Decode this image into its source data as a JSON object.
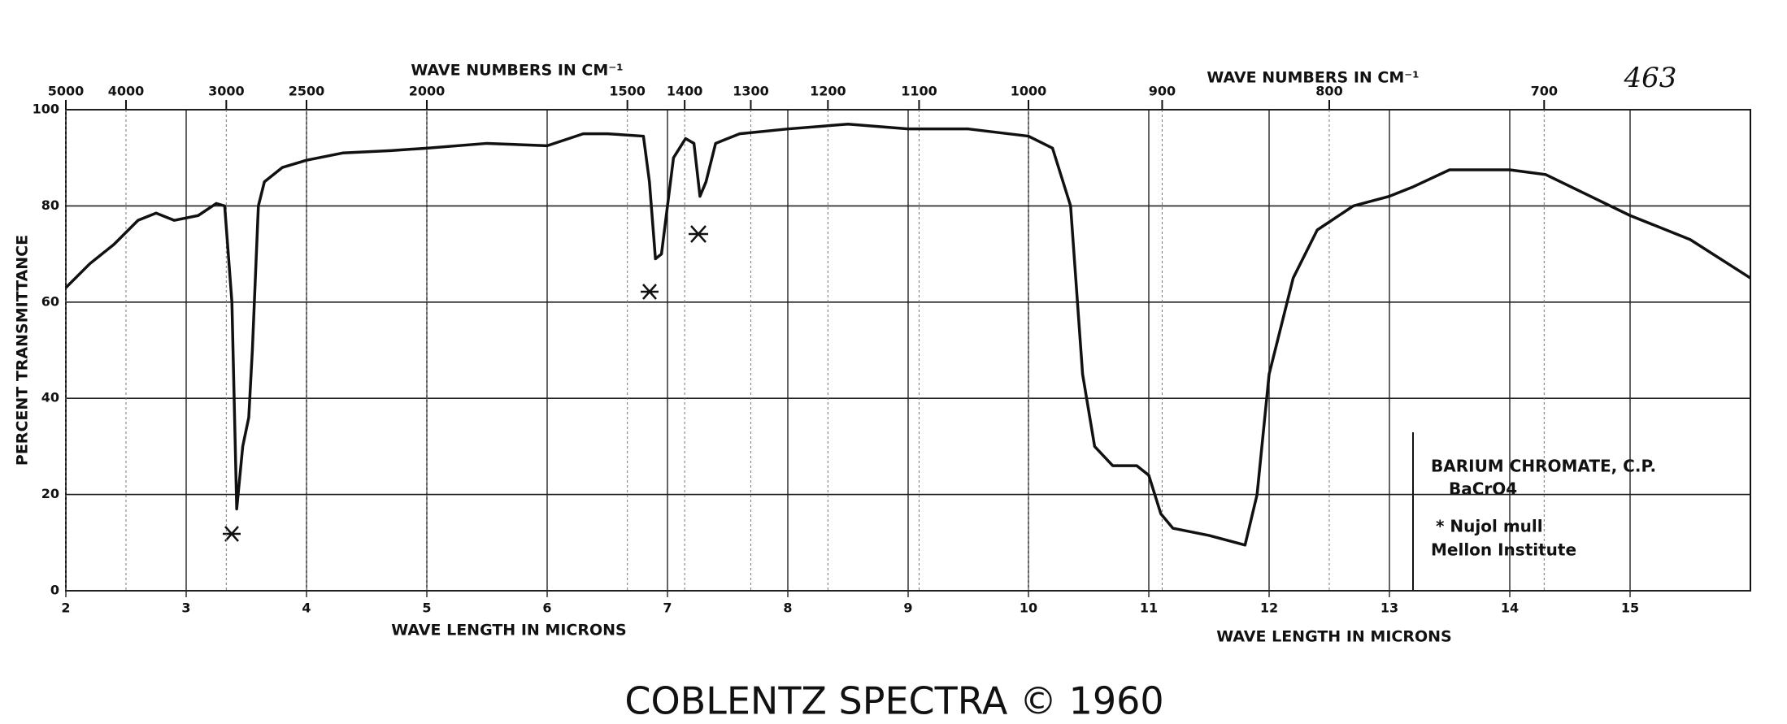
{
  "chart_data": {
    "type": "line",
    "top_label": "463",
    "x_label": "WAVE LENGTH IN MICRONS",
    "x2_label": "WAVE NUMBERS IN CM⁻¹",
    "y_label": "PERCENT TRANSMITTANCE",
    "footer": "COBLENTZ SPECTRA © 1960",
    "annotation": [
      "BARIUM CHROMATE, C.P.",
      "BaCrO4",
      "* Nujol mull",
      "Mellon Institute"
    ],
    "xlim": [
      2,
      16
    ],
    "xticks": [
      2,
      3,
      4,
      5,
      6,
      7,
      8,
      9,
      10,
      11,
      12,
      13,
      14,
      15
    ],
    "x2ticks": [
      5000,
      4000,
      3000,
      2500,
      2000,
      1500,
      1400,
      1300,
      1200,
      1100,
      1000,
      900,
      800,
      700
    ],
    "ylim": [
      0,
      100
    ],
    "yticks": [
      0,
      20,
      40,
      60,
      80,
      100
    ],
    "grid": true,
    "series": [
      {
        "color": "#111111",
        "x": [
          2.0,
          2.2,
          2.4,
          2.6,
          2.75,
          2.9,
          3.1,
          3.25,
          3.32,
          3.38,
          3.42,
          3.47,
          3.52,
          3.55,
          3.6,
          3.65,
          3.8,
          4.0,
          4.3,
          4.7,
          5.0,
          5.5,
          6.0,
          6.3,
          6.5,
          6.8,
          6.85,
          6.9,
          6.95,
          7.05,
          7.15,
          7.22,
          7.27,
          7.32,
          7.4,
          7.6,
          8.0,
          8.5,
          9.0,
          9.5,
          10.0,
          10.2,
          10.35,
          10.45,
          10.55,
          10.7,
          10.9,
          11.0,
          11.1,
          11.2,
          11.5,
          11.8,
          11.9,
          12.0,
          12.2,
          12.4,
          12.7,
          13.0,
          13.2,
          13.5,
          14.0,
          14.3,
          15.0,
          15.5,
          16.0
        ],
        "values": [
          63,
          68,
          72,
          77,
          78.5,
          77,
          78,
          80.5,
          80,
          60,
          17,
          30,
          36,
          50,
          80,
          85,
          88,
          89.5,
          91,
          91.5,
          92,
          93,
          92.5,
          95,
          95,
          94.5,
          85,
          69,
          70,
          90,
          94,
          93,
          82,
          85,
          93,
          95,
          96,
          97,
          96,
          96,
          94.5,
          92,
          80,
          45,
          30,
          26,
          26,
          24,
          16,
          13,
          11.5,
          9.5,
          20,
          45,
          65,
          75,
          80,
          82,
          84,
          87.5,
          87.5,
          86.5,
          78,
          73,
          65
        ]
      }
    ]
  }
}
